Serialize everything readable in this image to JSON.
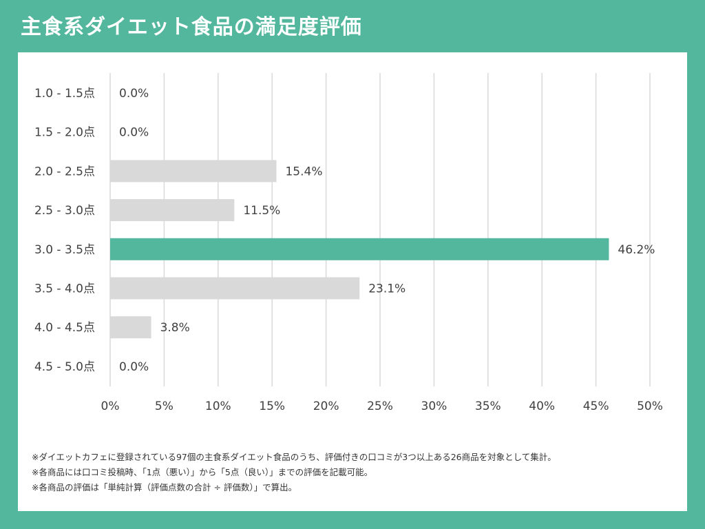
{
  "title": "主食系ダイエット食品の満足度評価",
  "colors": {
    "background": "#52b79d",
    "highlight_bar": "#52b79d",
    "bar": "#d9d9d9",
    "grid": "#d9d9d9",
    "text": "#404040"
  },
  "chart_data": {
    "type": "bar",
    "orientation": "horizontal",
    "title": "主食系ダイエット食品の満足度評価",
    "categories": [
      "1.0 - 1.5点",
      "1.5 - 2.0点",
      "2.0 - 2.5点",
      "2.5 - 3.0点",
      "3.0 - 3.5点",
      "3.5 - 4.0点",
      "4.0 - 4.5点",
      "4.5 - 5.0点"
    ],
    "values": [
      0.0,
      0.0,
      15.4,
      11.5,
      46.2,
      23.1,
      3.8,
      0.0
    ],
    "data_labels": [
      "0.0%",
      "0.0%",
      "15.4%",
      "11.5%",
      "46.2%",
      "23.1%",
      "3.8%",
      "0.0%"
    ],
    "highlight_index": 4,
    "xlim": [
      0,
      50
    ],
    "xticks": [
      0,
      5,
      10,
      15,
      20,
      25,
      30,
      35,
      40,
      45,
      50
    ],
    "xtick_labels": [
      "0%",
      "5%",
      "10%",
      "15%",
      "20%",
      "25%",
      "30%",
      "35%",
      "40%",
      "45%",
      "50%"
    ],
    "xlabel": "",
    "ylabel": "",
    "grid": true,
    "legend": "none"
  },
  "notes": [
    "※ダイエットカフェに登録されている97個の主食系ダイエット食品のうち、評価付きの口コミが3つ以上ある26商品を対象として集計。",
    "※各商品には口コミ投稿時、「1点（悪い）」から「5点（良い）」までの評価を記載可能。",
    "※各商品の評価は「単純計算（評価点数の合計 ÷ 評価数）」で算出。"
  ]
}
